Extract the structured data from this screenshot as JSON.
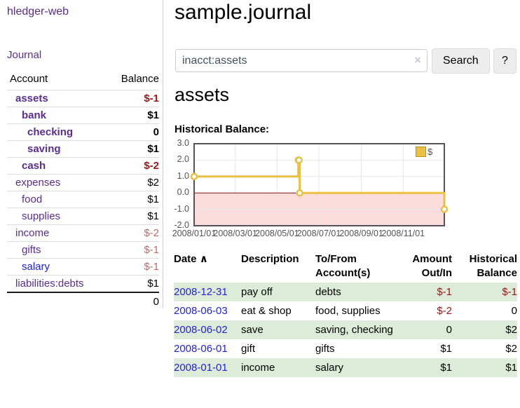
{
  "colors": {
    "accent_purple": "#5b2d90",
    "link_blue": "#2222dd",
    "negative_strong": "#a01616",
    "negative_soft": "#bc6b6b",
    "row_green": "#dcecd8",
    "chart_gold": "#e9c044",
    "chart_negative_region": "#fadcdc",
    "chart_zero_line": "#871010"
  },
  "sidebar": {
    "app_title": "hledger-web",
    "journal_link": "Journal",
    "accounts_table": {
      "header_account": "Account",
      "header_balance": "Balance",
      "rows": [
        {
          "name": "assets",
          "balance": "$-1",
          "indent": 1,
          "bold": true,
          "neg": "strong",
          "blue": false
        },
        {
          "name": "bank",
          "balance": "$1",
          "indent": 2,
          "bold": true,
          "neg": null,
          "blue": false
        },
        {
          "name": "checking",
          "balance": "0",
          "indent": 3,
          "bold": true,
          "neg": null,
          "blue": false
        },
        {
          "name": "saving",
          "balance": "$1",
          "indent": 3,
          "bold": true,
          "neg": null,
          "blue": false
        },
        {
          "name": "cash",
          "balance": "$-2",
          "indent": 2,
          "bold": true,
          "neg": "strong",
          "blue": false
        },
        {
          "name": "expenses",
          "balance": "$2",
          "indent": 1,
          "bold": false,
          "neg": null,
          "blue": false
        },
        {
          "name": "food",
          "balance": "$1",
          "indent": 2,
          "bold": false,
          "neg": null,
          "blue": false
        },
        {
          "name": "supplies",
          "balance": "$1",
          "indent": 2,
          "bold": false,
          "neg": null,
          "blue": false
        },
        {
          "name": "income",
          "balance": "$-2",
          "indent": 1,
          "bold": false,
          "neg": "soft",
          "blue": false
        },
        {
          "name": "gifts",
          "balance": "$-1",
          "indent": 2,
          "bold": false,
          "neg": "soft",
          "blue": false
        },
        {
          "name": "salary",
          "balance": "$-1",
          "indent": 2,
          "bold": false,
          "neg": "soft",
          "blue": true
        },
        {
          "name": "liabilities:debts",
          "balance": "$1",
          "indent": 1,
          "bold": false,
          "neg": null,
          "blue": false
        }
      ],
      "total": "0"
    }
  },
  "main": {
    "page_title": "sample.journal",
    "search": {
      "value": "inacct:assets",
      "clear_icon": "×",
      "button_label": "Search",
      "help_label": "?"
    },
    "account_heading": "assets",
    "section_heading": "Historical Balance:",
    "register": {
      "headers": {
        "date": "Date",
        "sort_caret": "∧",
        "description": "Description",
        "accounts": "To/From Account(s)",
        "amount": "Amount Out/In",
        "balance": "Historical Balance"
      },
      "rows": [
        {
          "date": "2008-12-31",
          "description": "pay off",
          "accounts": "debts",
          "amount": "$-1",
          "balance": "$-1",
          "green": true
        },
        {
          "date": "2008-06-03",
          "description": "eat & shop",
          "accounts": "food, supplies",
          "amount": "$-2",
          "balance": "0",
          "green": false
        },
        {
          "date": "2008-06-02",
          "description": "save",
          "accounts": "saving, checking",
          "amount": "0",
          "balance": "$2",
          "green": true
        },
        {
          "date": "2008-06-01",
          "description": "gift",
          "accounts": "gifts",
          "amount": "$1",
          "balance": "$2",
          "green": false
        },
        {
          "date": "2008-01-01",
          "description": "income",
          "accounts": "salary",
          "amount": "$1",
          "balance": "$1",
          "green": true
        }
      ]
    }
  },
  "chart_data": {
    "type": "line",
    "title": "Historical Balance",
    "series": [
      {
        "name": "$",
        "color": "#e9c044",
        "step": true,
        "points": [
          [
            "2008-01-01",
            1
          ],
          [
            "2008-06-01",
            2
          ],
          [
            "2008-06-02",
            2
          ],
          [
            "2008-06-03",
            0
          ],
          [
            "2008-12-31",
            -1
          ]
        ]
      }
    ],
    "x_range": [
      "2008-01-01",
      "2008-12-31"
    ],
    "ylim": [
      -2,
      3
    ],
    "x_ticks": [
      "2008/01/01",
      "2008/03/01",
      "2008/05/01",
      "2008/07/01",
      "2008/09/01",
      "2008/11/01"
    ],
    "y_ticks": [
      "3.0",
      "2.0",
      "1.0",
      "0.0",
      "-1.0",
      "-2.0"
    ],
    "grid": true,
    "legend": {
      "label": "$",
      "position": "top-right"
    },
    "negative_region_color": "#fadcdc",
    "zero_line_color": "#871010"
  }
}
